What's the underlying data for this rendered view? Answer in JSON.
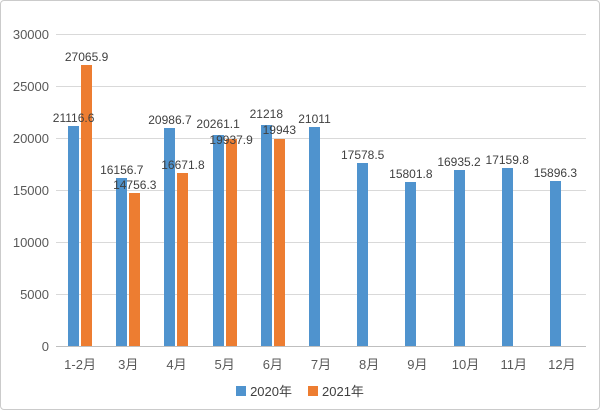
{
  "window": {
    "background": "#ffffff",
    "border_color": "#cbcbcb"
  },
  "chart_data": {
    "type": "bar",
    "title": "",
    "xlabel": "",
    "ylabel": "",
    "categories": [
      "1-2月",
      "3月",
      "4月",
      "5月",
      "6月",
      "7月",
      "8月",
      "9月",
      "10月",
      "11月",
      "12月"
    ],
    "series": [
      {
        "name": "2020年",
        "color": "#4f93ce",
        "values": [
          21116.6,
          16156.7,
          20986.7,
          20261.1,
          21218,
          21011,
          17578.5,
          15801.8,
          16935.2,
          17159.8,
          15896.3
        ]
      },
      {
        "name": "2021年",
        "color": "#ed7d31",
        "values": [
          27065.9,
          14756.3,
          16671.8,
          19937.9,
          19943,
          null,
          null,
          null,
          null,
          null,
          null
        ]
      }
    ],
    "ylim": [
      0,
      30000
    ],
    "yticks": [
      0,
      5000,
      10000,
      15000,
      20000,
      25000,
      30000
    ],
    "grid": true,
    "gridline_color": "#d9d9d9",
    "axis_line_color": "#bfbfbf",
    "data_labels": true,
    "data_label_color": "#404040",
    "tick_label_color": "#595959",
    "legend_position": "bottom"
  }
}
